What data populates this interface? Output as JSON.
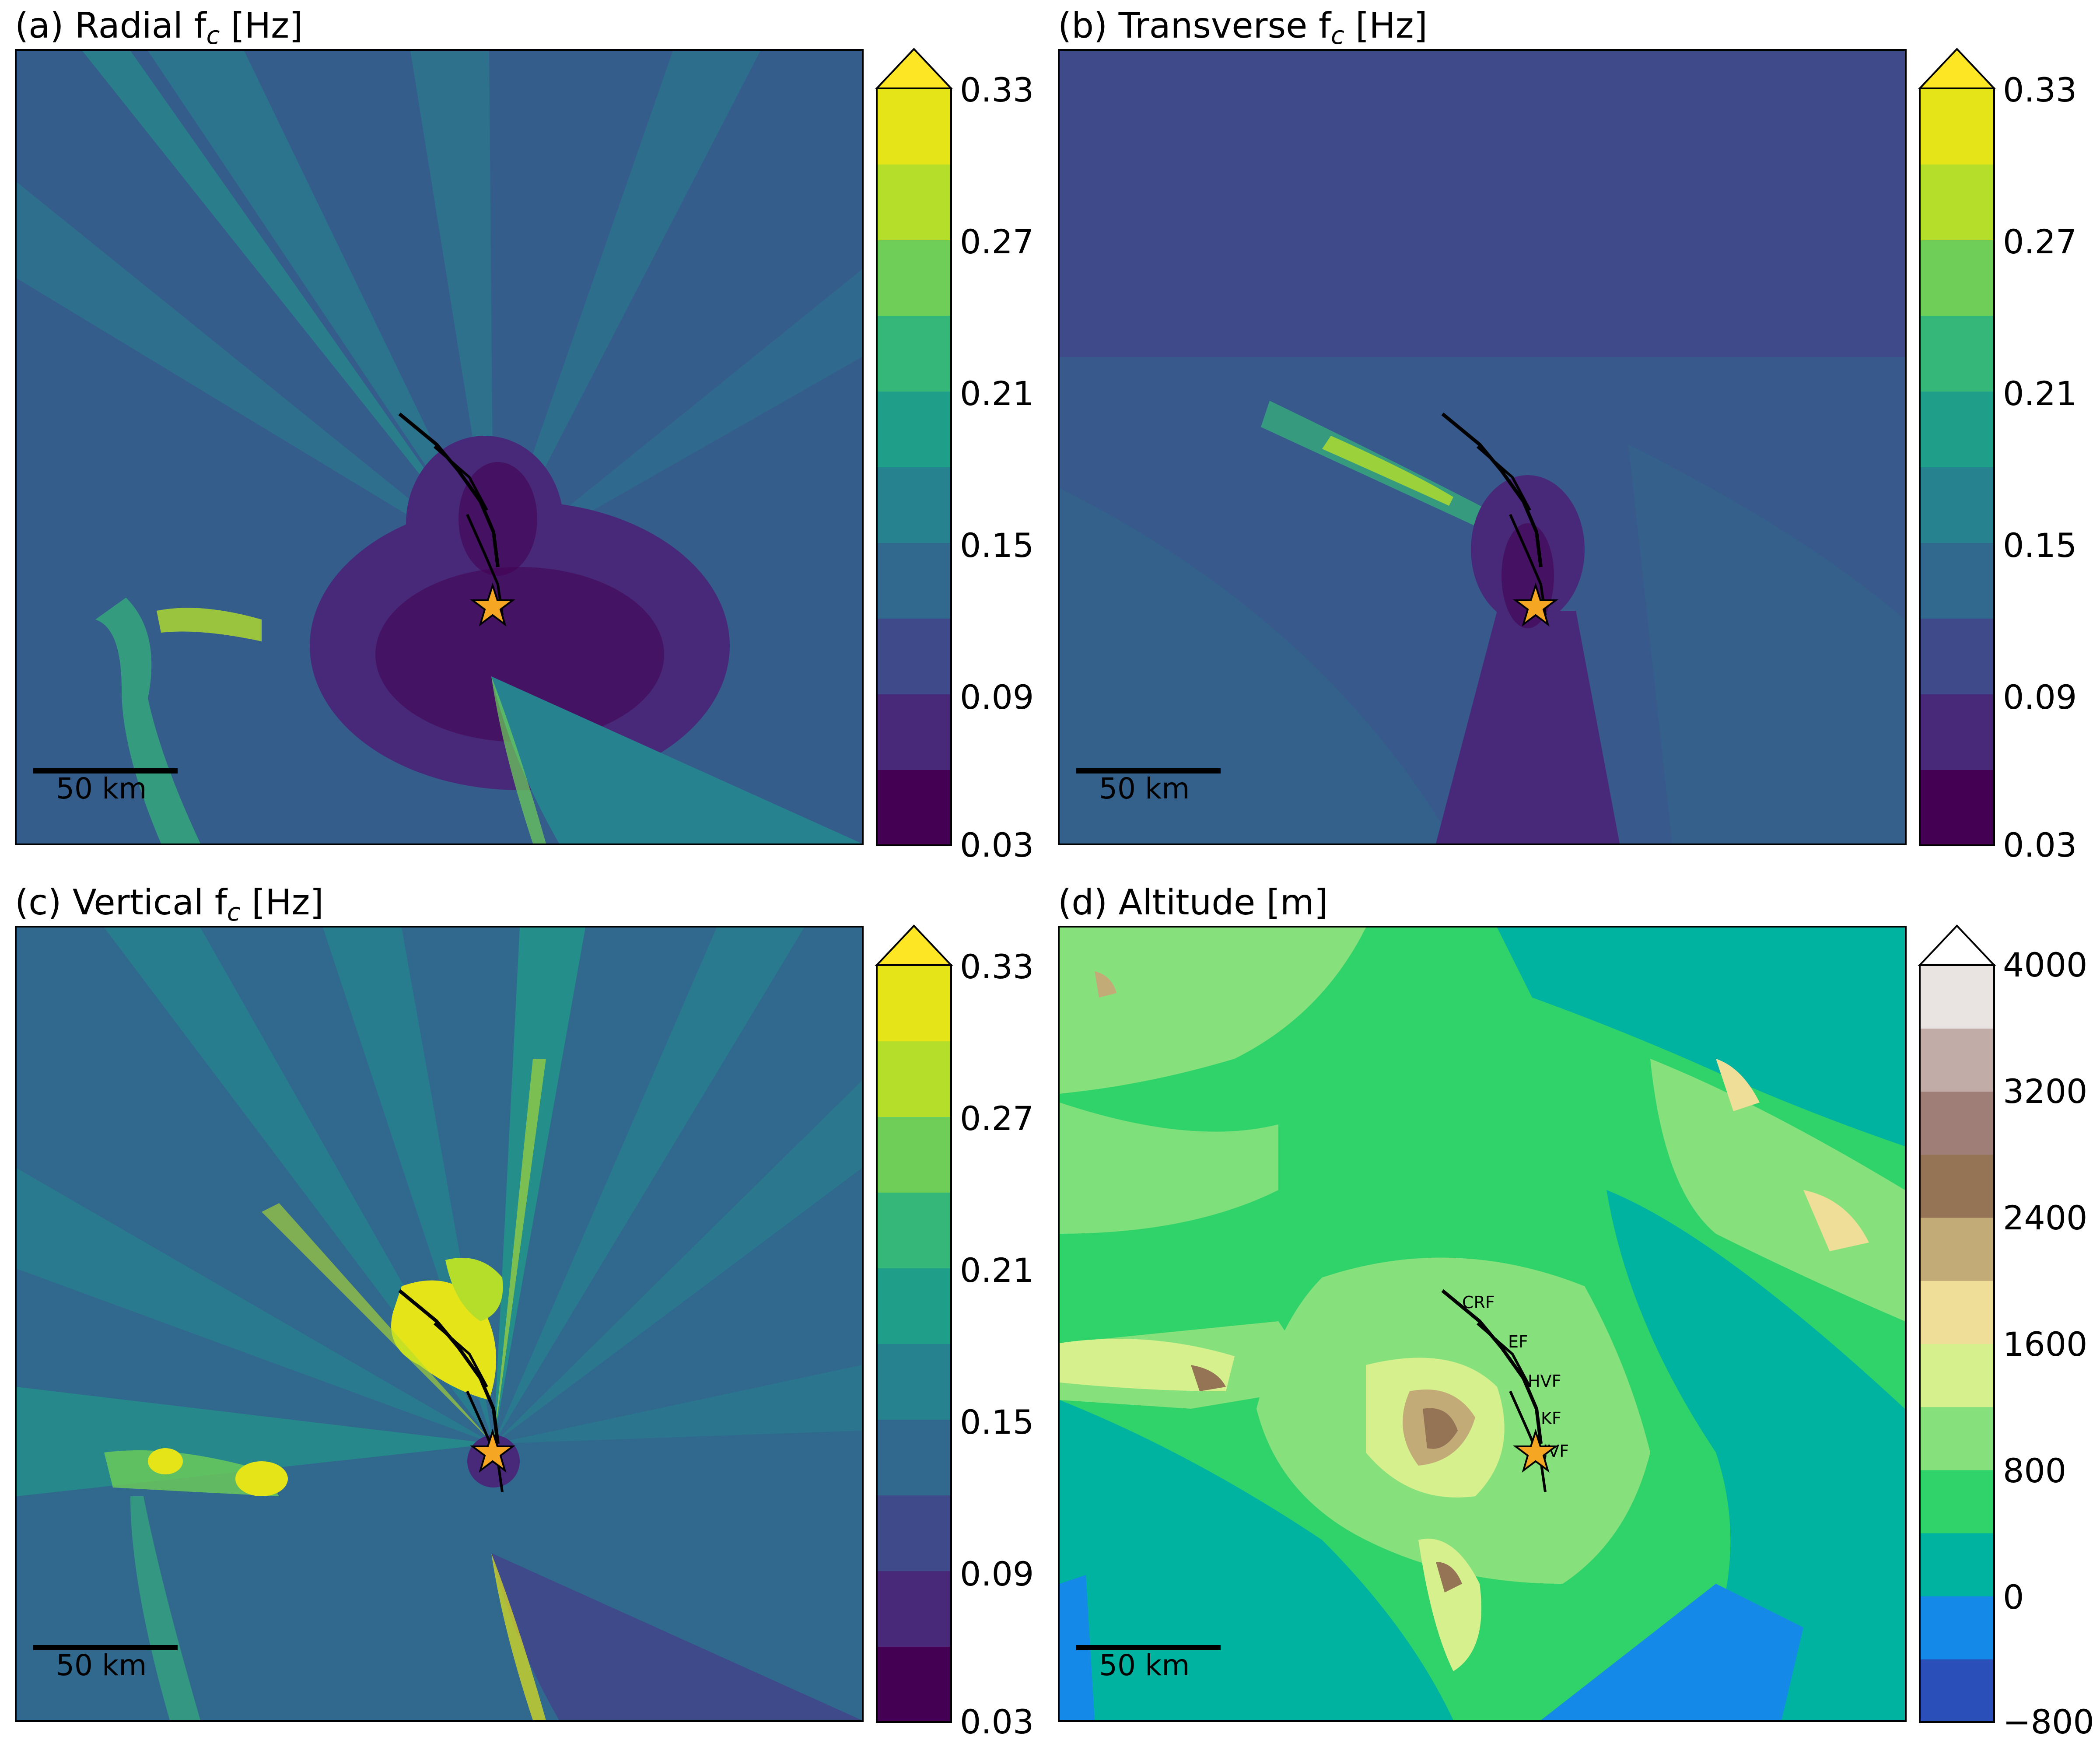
{
  "panels": {
    "a": {
      "prefix": "(a) Radial f",
      "sub": "c",
      "unit": "[Hz]"
    },
    "b": {
      "prefix": "(b) Transverse f",
      "sub": "c",
      "unit": "[Hz]"
    },
    "c": {
      "prefix": "(c) Vertical f",
      "sub": "c",
      "unit": "[Hz]"
    },
    "d": {
      "title": "(d) Altitude [m]"
    }
  },
  "scale_bar": {
    "label": "50 km"
  },
  "fc_colorbar": {
    "ticks": [
      "0.33",
      "0.27",
      "0.21",
      "0.15",
      "0.09",
      "0.03"
    ],
    "extend": "max",
    "colors": [
      "#440154",
      "#482979",
      "#3e4a89",
      "#31688e",
      "#26828e",
      "#1f9e89",
      "#35b779",
      "#6ece58",
      "#b5de2b",
      "#e4e419",
      "#fde725"
    ]
  },
  "altitude_colorbar": {
    "ticks": [
      "4000",
      "3200",
      "2400",
      "1600",
      "800",
      "0",
      "−800"
    ],
    "extend": "max",
    "colors": [
      "#2b4fb8",
      "#1489e8",
      "#00b2a0",
      "#2fd36a",
      "#86e17c",
      "#d6f08e",
      "#eede97",
      "#c3ab78",
      "#957456",
      "#9e7e76",
      "#c2aca8",
      "#e9e3e2",
      "#ffffff"
    ]
  },
  "fault_labels": [
    "CRF",
    "EF",
    "HVF",
    "KF",
    "JVF"
  ],
  "epicenter_color": "#f5a623"
}
